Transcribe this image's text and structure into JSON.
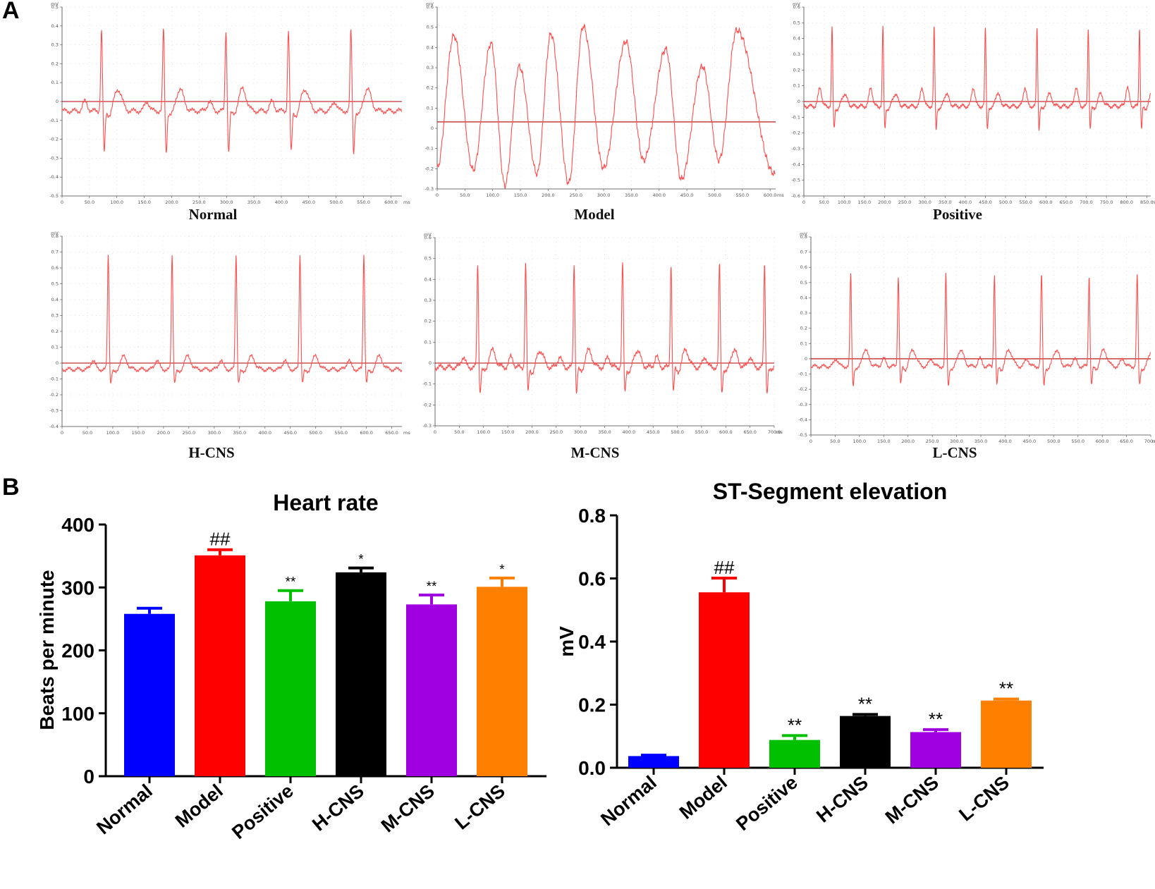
{
  "panel_labels": {
    "a": "A",
    "b": "B"
  },
  "colors": {
    "ecg_trace": "#ff4d4d",
    "ecg_baseline": "#b00000",
    "grid": "#d9d9d9",
    "normal": "#0000ff",
    "model": "#ff0000",
    "positive": "#00c000",
    "hcns": "#000000",
    "mcns": "#a000e0",
    "lcns": "#ff8000"
  },
  "chart_data": [
    {
      "type": "line",
      "title": "Normal",
      "unit": "mV",
      "time_unit": "ms",
      "ylim": [
        -0.5,
        0.5
      ],
      "yticks": [
        "0.5",
        "0.4",
        "0.3",
        "0.2",
        "0.1",
        "0",
        "-0.1",
        "-0.2",
        "-0.3",
        "-0.4",
        "-0.5"
      ],
      "xticks": [
        "0",
        "50.0",
        "100.0",
        "150.0",
        "200.0",
        "250.0",
        "300.0",
        "350.0",
        "400.0",
        "450.0",
        "500.0",
        "550.0",
        "600.0"
      ],
      "xmax": 620,
      "baseline": 0,
      "beats_at": [
        72,
        185,
        299,
        413,
        527
      ],
      "r_amp": 0.38,
      "s_amp": -0.2,
      "t_amp": 0.09,
      "p_amp": 0.05,
      "offset": -0.05
    },
    {
      "type": "line",
      "title": "Model",
      "unit": "mV",
      "time_unit": "ms",
      "ylim": [
        -0.35,
        0.6
      ],
      "yticks": [
        "0.6",
        "0.5",
        "0.4",
        "0.3",
        "0.2",
        "0.1",
        "0",
        "-0.1",
        "-0.2",
        "-0.3"
      ],
      "xticks": [
        "0",
        "50.0",
        "100.0",
        "150.0",
        "200.0",
        "250.0",
        "300.0",
        "350.0",
        "400.0",
        "450.0",
        "500.0",
        "550.0",
        "600.0"
      ],
      "xmax": 610,
      "baseline": 0,
      "peaks": [
        [
          30,
          0.45
        ],
        [
          97,
          0.41
        ],
        [
          148,
          0.29
        ],
        [
          205,
          0.46
        ],
        [
          263,
          0.5
        ],
        [
          340,
          0.42
        ],
        [
          412,
          0.38
        ],
        [
          478,
          0.29
        ],
        [
          540,
          0.48
        ]
      ],
      "troughs": [
        [
          0,
          -0.24
        ],
        [
          65,
          -0.25
        ],
        [
          122,
          -0.33
        ],
        [
          180,
          -0.27
        ],
        [
          237,
          -0.32
        ],
        [
          300,
          -0.24
        ],
        [
          372,
          -0.2
        ],
        [
          440,
          -0.3
        ],
        [
          508,
          -0.2
        ],
        [
          608,
          -0.27
        ]
      ]
    },
    {
      "type": "line",
      "title": "Positive",
      "unit": "mV",
      "time_unit": "ms",
      "ylim": [
        -0.6,
        0.6
      ],
      "yticks": [
        "0.6",
        "0.5",
        "0.4",
        "0.3",
        "0.2",
        "0.1",
        "0",
        "-0.1",
        "-0.2",
        "-0.3",
        "-0.4",
        "-0.5",
        "-0.6"
      ],
      "xticks": [
        "0",
        "50.0",
        "100.0",
        "150.0",
        "200.0",
        "250.0",
        "300.0",
        "350.0",
        "400.0",
        "450.0",
        "500.0",
        "550.0",
        "600.0",
        "650.0",
        "700.0",
        "750.0",
        "800.0",
        "850.0"
      ],
      "xmax": 860,
      "baseline": 0,
      "beats_at": [
        70,
        196,
        323,
        450,
        578,
        705,
        832
      ],
      "r_amp": 0.47,
      "s_amp": -0.12,
      "t_amp": 0.06,
      "p_amp": 0.12,
      "offset": -0.03
    },
    {
      "type": "line",
      "title": "H-CNS",
      "unit": "mV",
      "time_unit": "ms",
      "ylim": [
        -0.4,
        0.8
      ],
      "yticks": [
        "0.8",
        "0.7",
        "0.6",
        "0.5",
        "0.4",
        "0.3",
        "0.2",
        "0.1",
        "0",
        "-0.1",
        "-0.2",
        "-0.3",
        "-0.4"
      ],
      "xticks": [
        "0",
        "50.0",
        "100.0",
        "150.0",
        "200.0",
        "250.0",
        "300.0",
        "350.0",
        "400.0",
        "450.0",
        "500.0",
        "550.0",
        "600.0",
        "650.0"
      ],
      "xmax": 670,
      "baseline": 0,
      "beats_at": [
        91,
        217,
        343,
        469,
        595
      ],
      "r_amp": 0.69,
      "s_amp": -0.06,
      "t_amp": 0.06,
      "p_amp": 0.06,
      "offset": -0.04
    },
    {
      "type": "line",
      "title": "M-CNS",
      "unit": "mV",
      "time_unit": "ms",
      "ylim": [
        -0.3,
        0.6
      ],
      "yticks": [
        "0.6",
        "0.5",
        "0.4",
        "0.3",
        "0.2",
        "0.1",
        "0",
        "-0.1",
        "-0.2",
        "-0.3"
      ],
      "xticks": [
        "0",
        "50.0",
        "100.0",
        "150.0",
        "200.0",
        "250.0",
        "300.0",
        "350.0",
        "400.0",
        "450.0",
        "500.0",
        "550.0",
        "600.0",
        "650.0",
        "700.0"
      ],
      "xmax": 700,
      "baseline": 0,
      "beats_at": [
        88,
        187,
        287,
        387,
        487,
        587,
        680
      ],
      "r_amp": 0.48,
      "s_amp": -0.1,
      "t_amp": 0.07,
      "p_amp": 0.05,
      "offset": -0.02
    },
    {
      "type": "line",
      "title": "L-CNS",
      "unit": "mV",
      "time_unit": "ms",
      "ylim": [
        -0.5,
        0.8
      ],
      "yticks": [
        "0.8",
        "0.7",
        "0.6",
        "0.5",
        "0.4",
        "0.3",
        "0.2",
        "0.1",
        "0",
        "-0.1",
        "-0.2",
        "-0.3",
        "-0.4",
        "-0.5"
      ],
      "xticks": [
        "0",
        "50.0",
        "100.0",
        "150.0",
        "200.0",
        "250.0",
        "300.0",
        "350.0",
        "400.0",
        "450.0",
        "500.0",
        "550.0",
        "600.0",
        "650.0",
        "700.0"
      ],
      "xmax": 700,
      "baseline": 0,
      "beats_at": [
        82,
        180,
        278,
        378,
        475,
        573,
        672
      ],
      "r_amp": 0.55,
      "s_amp": -0.1,
      "t_amp": 0.08,
      "p_amp": 0.05,
      "offset": -0.05
    },
    {
      "type": "bar",
      "title": "Heart rate",
      "xlabel": "",
      "ylabel": "Beats per minute",
      "ylim": [
        0,
        400
      ],
      "yticks": [
        "0",
        "100",
        "200",
        "300",
        "400"
      ],
      "categories": [
        "Normal",
        "Model",
        "Positive",
        "H-CNS",
        "M-CNS",
        "L-CNS"
      ],
      "values": [
        258,
        351,
        278,
        324,
        273,
        301
      ],
      "errors": [
        9,
        9,
        17,
        7,
        15,
        14
      ],
      "annotations": [
        "",
        "##",
        "**",
        "*",
        "**",
        "*"
      ],
      "bar_colors": [
        "#0000ff",
        "#ff0000",
        "#00c000",
        "#000000",
        "#a000e0",
        "#ff8000"
      ]
    },
    {
      "type": "bar",
      "title": "ST-Segment elevation",
      "xlabel": "",
      "ylabel": "mV",
      "ylim": [
        0,
        0.8
      ],
      "yticks": [
        "0.0",
        "0.2",
        "0.4",
        "0.6",
        "0.8"
      ],
      "categories": [
        "Normal",
        "Model",
        "Positive",
        "H-CNS",
        "M-CNS",
        "L-CNS"
      ],
      "values": [
        0.037,
        0.556,
        0.088,
        0.164,
        0.113,
        0.213
      ],
      "errors": [
        0.003,
        0.045,
        0.014,
        0.005,
        0.008,
        0.005
      ],
      "annotations": [
        "",
        "##",
        "**",
        "**",
        "**",
        "**"
      ],
      "bar_colors": [
        "#0000ff",
        "#ff0000",
        "#00c000",
        "#000000",
        "#a000e0",
        "#ff8000"
      ]
    }
  ]
}
